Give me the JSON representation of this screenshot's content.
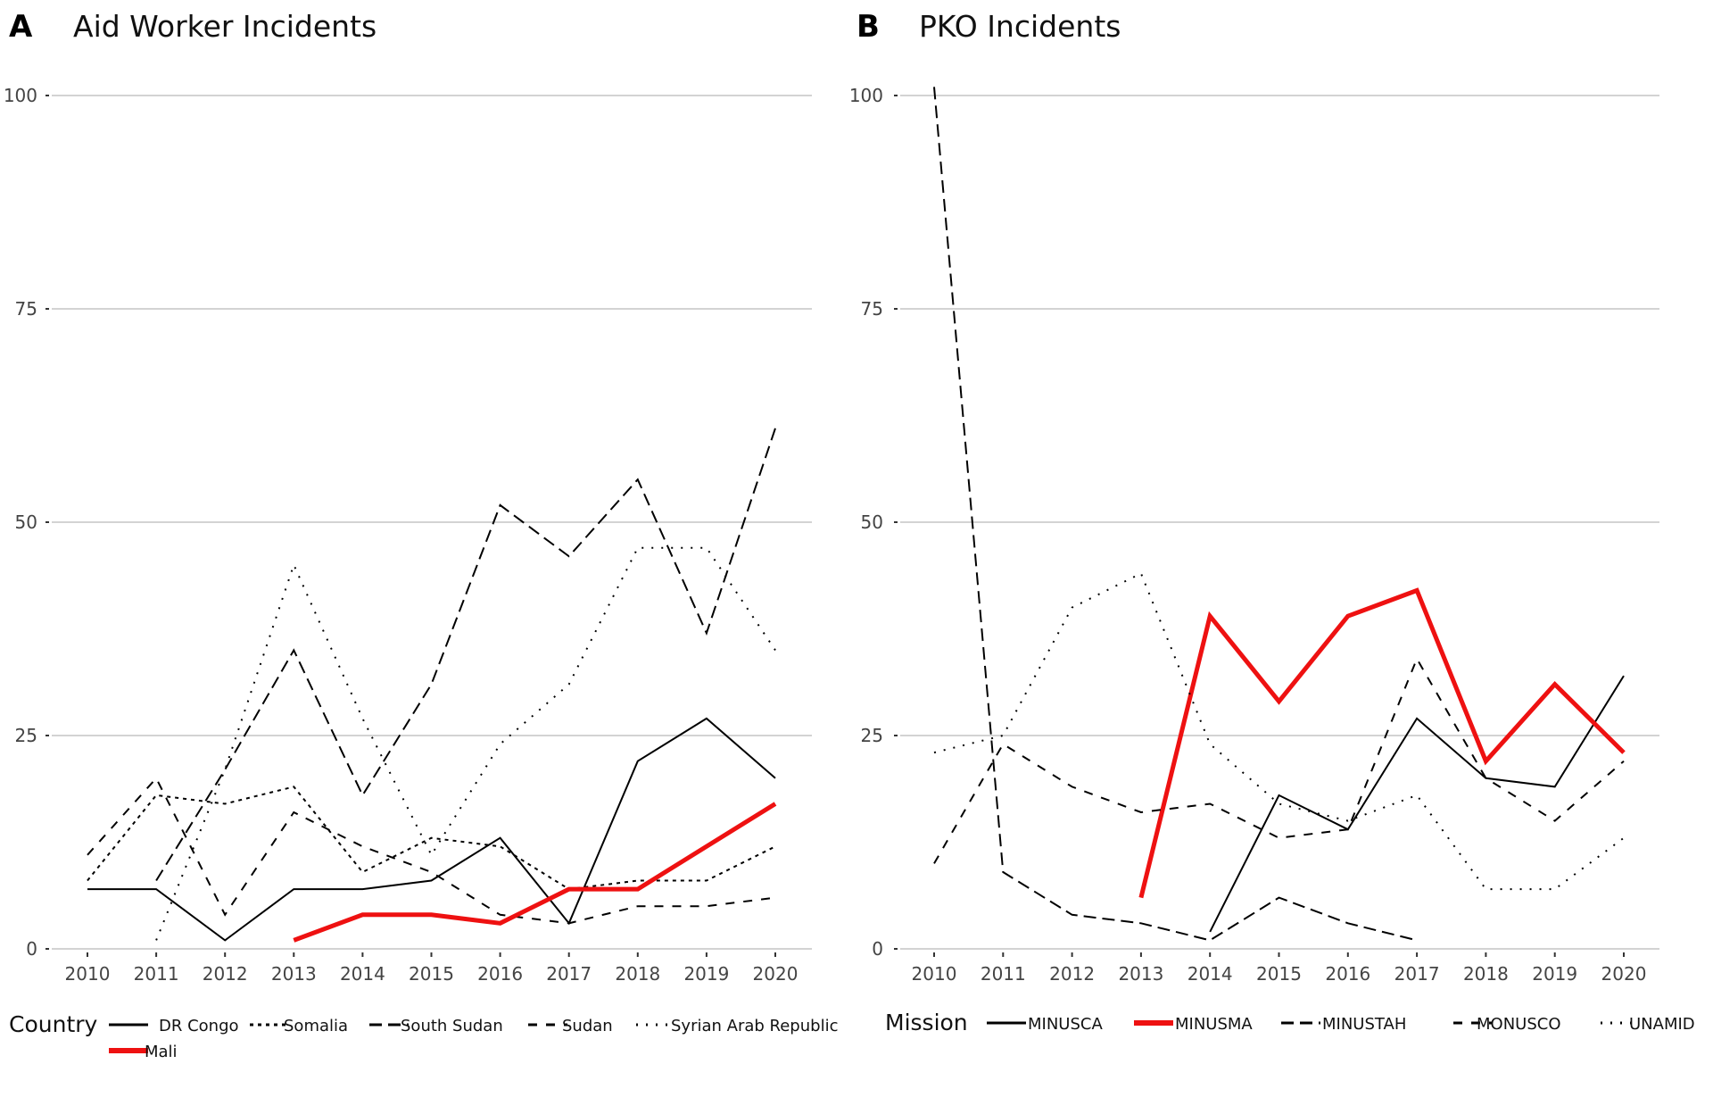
{
  "chart_data": [
    {
      "type": "line",
      "panel_letter": "A",
      "title": "Aid Worker Incidents",
      "xlabel": "",
      "ylabel": "",
      "x": [
        2010,
        2011,
        2012,
        2013,
        2014,
        2015,
        2016,
        2017,
        2018,
        2019,
        2020
      ],
      "x_tick_labels": [
        "2010",
        "2011",
        "2012",
        "2013",
        "2014",
        "2015",
        "2016",
        "2017",
        "2018",
        "2019",
        "2020"
      ],
      "ylim": [
        0,
        100
      ],
      "y_ticks": [
        0,
        25,
        50,
        75,
        100
      ],
      "y_tick_labels": [
        "0",
        "25",
        "50",
        "75",
        "100"
      ],
      "grid": "horizontal",
      "legend_title": "Country",
      "legend_position": "bottom",
      "series": [
        {
          "name": "DR Congo",
          "style": "solid",
          "color": "#000000",
          "values": [
            7,
            7,
            1,
            7,
            7,
            8,
            13,
            3,
            22,
            27,
            20
          ]
        },
        {
          "name": "Somalia",
          "style": "dotted",
          "color": "#000000",
          "values": [
            8,
            18,
            17,
            19,
            9,
            13,
            12,
            7,
            8,
            8,
            12
          ]
        },
        {
          "name": "South Sudan",
          "style": "longdash",
          "color": "#000000",
          "values": [
            null,
            8,
            21,
            35,
            18,
            31,
            52,
            46,
            55,
            37,
            61
          ]
        },
        {
          "name": "Sudan",
          "style": "dashed",
          "color": "#000000",
          "values": [
            11,
            20,
            4,
            16,
            12,
            9,
            4,
            3,
            5,
            5,
            6
          ]
        },
        {
          "name": "Syrian Arab Republic",
          "style": "sparsedot",
          "color": "#000000",
          "values": [
            null,
            1,
            21,
            45,
            27,
            11,
            24,
            31,
            47,
            47,
            35
          ]
        },
        {
          "name": "Mali",
          "style": "solid-thick",
          "color": "#ee1111",
          "values": [
            null,
            null,
            null,
            1,
            4,
            4,
            3,
            7,
            7,
            12,
            17
          ]
        }
      ]
    },
    {
      "type": "line",
      "panel_letter": "B",
      "title": "PKO Incidents",
      "xlabel": "",
      "ylabel": "",
      "x": [
        2010,
        2011,
        2012,
        2013,
        2014,
        2015,
        2016,
        2017,
        2018,
        2019,
        2020
      ],
      "x_tick_labels": [
        "2010",
        "2011",
        "2012",
        "2013",
        "2014",
        "2015",
        "2016",
        "2017",
        "2018",
        "2019",
        "2020"
      ],
      "ylim": [
        0,
        100
      ],
      "y_ticks": [
        0,
        25,
        50,
        75,
        100
      ],
      "y_tick_labels": [
        "0",
        "25",
        "50",
        "75",
        "100"
      ],
      "grid": "horizontal",
      "legend_title": "Mission",
      "legend_position": "bottom",
      "series": [
        {
          "name": "MINUSCA",
          "style": "solid",
          "color": "#000000",
          "values": [
            null,
            null,
            null,
            null,
            2,
            18,
            14,
            27,
            20,
            19,
            32
          ]
        },
        {
          "name": "MINUSMA",
          "style": "solid-thick",
          "color": "#ee1111",
          "values": [
            null,
            null,
            null,
            6,
            39,
            29,
            39,
            42,
            22,
            31,
            23
          ]
        },
        {
          "name": "MINUSTAH",
          "style": "longdash",
          "color": "#000000",
          "values": [
            101,
            9,
            4,
            3,
            1,
            6,
            3,
            1,
            null,
            null,
            null
          ]
        },
        {
          "name": "MONUSCO",
          "style": "dashed",
          "color": "#000000",
          "values": [
            10,
            24,
            19,
            16,
            17,
            13,
            14,
            34,
            20,
            15,
            22
          ]
        },
        {
          "name": "UNAMID",
          "style": "sparsedot",
          "color": "#000000",
          "values": [
            23,
            25,
            40,
            44,
            24,
            17,
            15,
            18,
            7,
            7,
            13
          ]
        }
      ]
    }
  ]
}
